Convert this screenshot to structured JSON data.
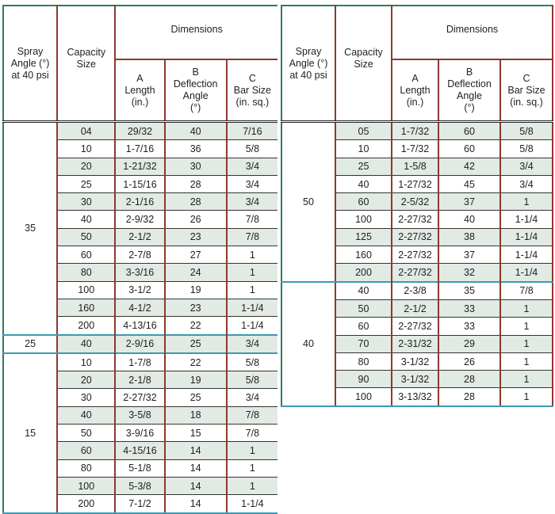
{
  "headers": {
    "spray_angle": "Spray Angle (°) at 40 psi",
    "capacity": "Capacity Size",
    "dimensions": "Dimensions",
    "a": [
      "A",
      "Length",
      "(in.)"
    ],
    "b": [
      "B",
      "Deflection",
      "Angle",
      "(°)"
    ],
    "c": [
      "C",
      "Bar Size",
      "(in. sq.)"
    ]
  },
  "colors": {
    "row_shade": "#e2eae4",
    "vertical_rule": "#8b3a2e",
    "group_rule": "#3a9bb0",
    "outer_border": "#2e7d5e"
  },
  "tables": [
    {
      "groups": [
        {
          "spray_angle": "35",
          "rows": [
            [
              "04",
              "29/32",
              "40",
              "7/16"
            ],
            [
              "10",
              "1-7/16",
              "36",
              "5/8"
            ],
            [
              "20",
              "1-21/32",
              "30",
              "3/4"
            ],
            [
              "25",
              "1-15/16",
              "28",
              "3/4"
            ],
            [
              "30",
              "2-1/16",
              "28",
              "3/4"
            ],
            [
              "40",
              "2-9/32",
              "26",
              "7/8"
            ],
            [
              "50",
              "2-1/2",
              "23",
              "7/8"
            ],
            [
              "60",
              "2-7/8",
              "27",
              "1"
            ],
            [
              "80",
              "3-3/16",
              "24",
              "1"
            ],
            [
              "100",
              "3-1/2",
              "19",
              "1"
            ],
            [
              "160",
              "4-1/2",
              "23",
              "1-1/4"
            ],
            [
              "200",
              "4-13/16",
              "22",
              "1-1/4"
            ]
          ]
        },
        {
          "spray_angle": "25",
          "rows": [
            [
              "40",
              "2-9/16",
              "25",
              "3/4"
            ]
          ]
        },
        {
          "spray_angle": "15",
          "rows": [
            [
              "10",
              "1-7/8",
              "22",
              "5/8"
            ],
            [
              "20",
              "2-1/8",
              "19",
              "5/8"
            ],
            [
              "30",
              "2-27/32",
              "25",
              "3/4"
            ],
            [
              "40",
              "3-5/8",
              "18",
              "7/8"
            ],
            [
              "50",
              "3-9/16",
              "15",
              "7/8"
            ],
            [
              "60",
              "4-15/16",
              "14",
              "1"
            ],
            [
              "80",
              "5-1/8",
              "14",
              "1"
            ],
            [
              "100",
              "5-3/8",
              "14",
              "1"
            ],
            [
              "200",
              "7-1/2",
              "14",
              "1-1/4"
            ]
          ]
        }
      ]
    },
    {
      "groups": [
        {
          "spray_angle": "50",
          "rows": [
            [
              "05",
              "1-7/32",
              "60",
              "5/8"
            ],
            [
              "10",
              "1-7/32",
              "60",
              "5/8"
            ],
            [
              "25",
              "1-5/8",
              "42",
              "3/4"
            ],
            [
              "40",
              "1-27/32",
              "45",
              "3/4"
            ],
            [
              "60",
              "2-5/32",
              "37",
              "1"
            ],
            [
              "100",
              "2-27/32",
              "40",
              "1-1/4"
            ],
            [
              "125",
              "2-27/32",
              "38",
              "1-1/4"
            ],
            [
              "160",
              "2-27/32",
              "37",
              "1-1/4"
            ],
            [
              "200",
              "2-27/32",
              "32",
              "1-1/4"
            ]
          ]
        },
        {
          "spray_angle": "40",
          "rows": [
            [
              "40",
              "2-3/8",
              "35",
              "7/8"
            ],
            [
              "50",
              "2-1/2",
              "33",
              "1"
            ],
            [
              "60",
              "2-27/32",
              "33",
              "1"
            ],
            [
              "70",
              "2-31/32",
              "29",
              "1"
            ],
            [
              "80",
              "3-1/32",
              "26",
              "1"
            ],
            [
              "90",
              "3-1/32",
              "28",
              "1"
            ],
            [
              "100",
              "3-13/32",
              "28",
              "1"
            ]
          ]
        }
      ]
    }
  ]
}
